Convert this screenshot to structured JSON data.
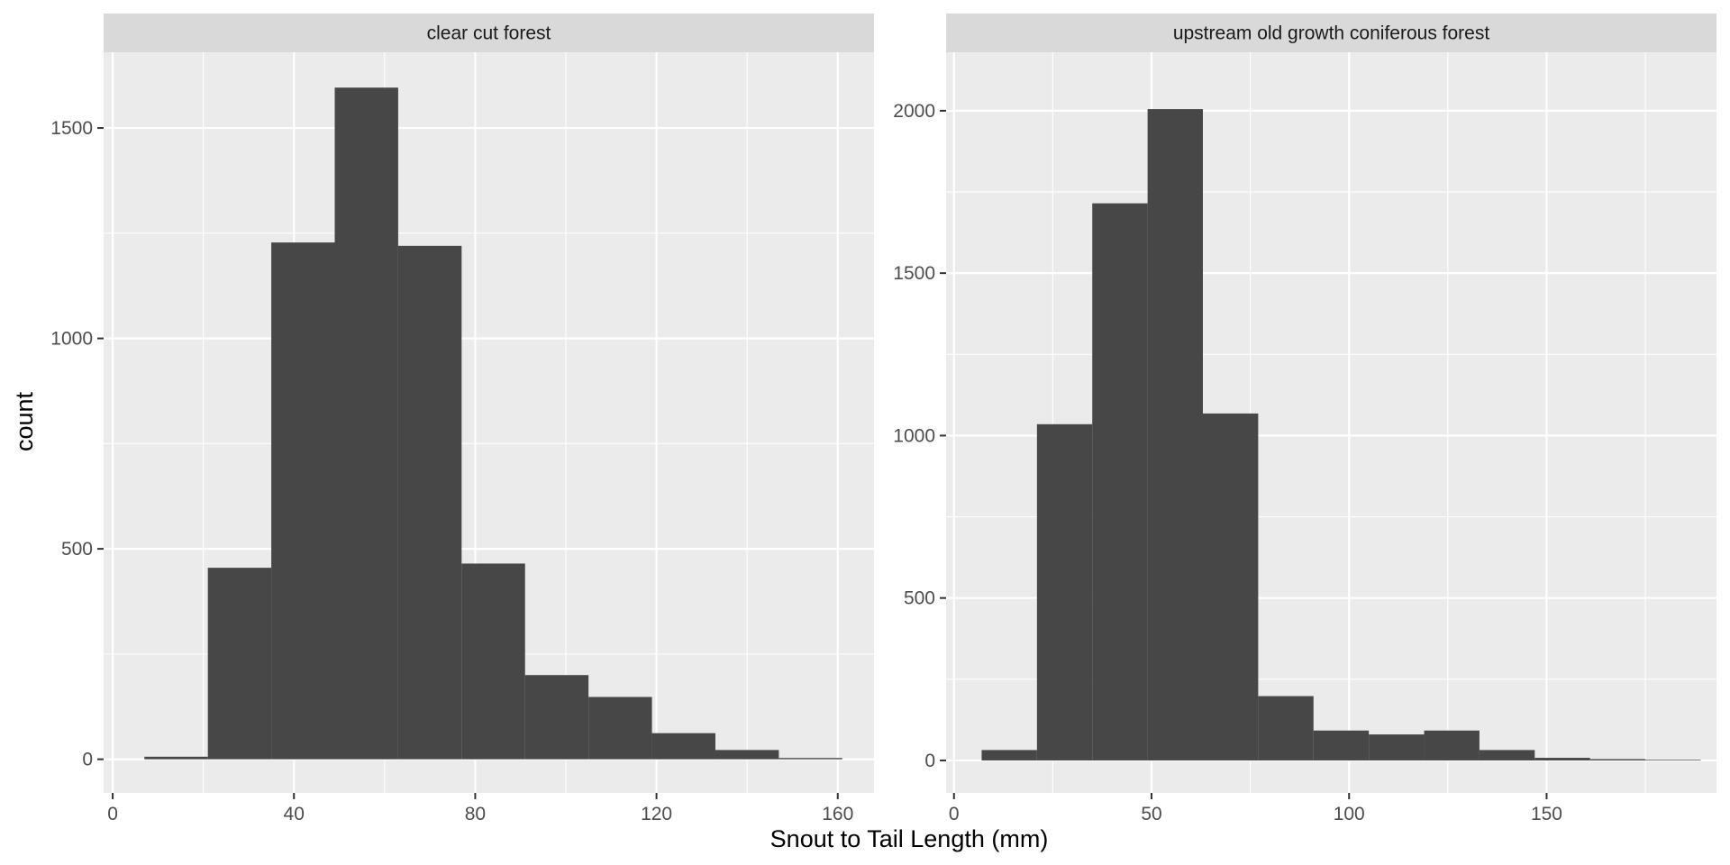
{
  "chart_data": [
    {
      "type": "bar",
      "panel_title": "clear cut forest",
      "bin_edges": [
        7,
        21,
        35,
        49,
        63,
        77,
        91,
        105,
        119,
        133,
        147,
        161
      ],
      "values": [
        6,
        455,
        1228,
        1596,
        1220,
        465,
        200,
        148,
        62,
        22,
        3
      ],
      "xlim": [
        -2,
        168
      ],
      "ylim": [
        -80,
        1680
      ],
      "xticks": [
        0,
        40,
        80,
        120,
        160
      ],
      "xtick_labels": [
        "0",
        "40",
        "80",
        "120",
        "160"
      ],
      "xminor": [
        20,
        60,
        100,
        140
      ],
      "yticks": [
        0,
        500,
        1000,
        1500
      ],
      "ytick_labels": [
        "0",
        "500",
        "1000",
        "1500"
      ],
      "yminor": [
        250,
        750,
        1250
      ],
      "grid": true
    },
    {
      "type": "bar",
      "panel_title": "upstream old growth coniferous forest",
      "bin_edges": [
        7,
        21,
        35,
        49,
        63,
        77,
        91,
        105,
        119,
        133,
        147,
        161,
        175,
        189
      ],
      "values": [
        32,
        1035,
        1715,
        2005,
        1068,
        198,
        92,
        80,
        92,
        32,
        8,
        4,
        2
      ],
      "xlim": [
        -2,
        193
      ],
      "ylim": [
        -100,
        2180
      ],
      "xticks": [
        0,
        50,
        100,
        150
      ],
      "xtick_labels": [
        "0",
        "50",
        "100",
        "150"
      ],
      "xminor": [
        25,
        75,
        125,
        175
      ],
      "yticks": [
        0,
        500,
        1000,
        1500,
        2000
      ],
      "ytick_labels": [
        "0",
        "500",
        "1000",
        "1500",
        "2000"
      ],
      "yminor": [
        250,
        750,
        1250,
        1750
      ],
      "grid": true
    }
  ],
  "xlabel": "Snout to Tail Length (mm)",
  "ylabel": "count",
  "colors": {
    "panel_background": "#ebebeb",
    "strip_background": "#d9d9d9",
    "bar_fill": "#474747",
    "grid": "#ffffff"
  }
}
